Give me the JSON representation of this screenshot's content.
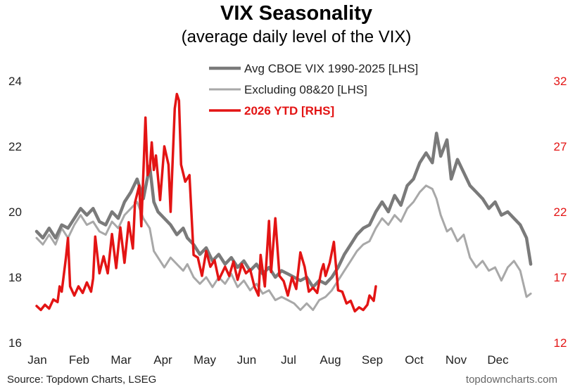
{
  "chart_data": {
    "type": "line",
    "title": "VIX Seasonality",
    "subtitle": "(average daily level of the VIX)",
    "source": "Source: Topdown Charts, LSEG",
    "watermark": "topdowncharts.com",
    "x_months": [
      "Jan",
      "Feb",
      "Mar",
      "Apr",
      "May",
      "Jun",
      "Jul",
      "Aug",
      "Sep",
      "Oct",
      "Nov",
      "Dec"
    ],
    "y_left": {
      "min": 16,
      "max": 24,
      "ticks": [
        "16",
        "18",
        "20",
        "22",
        "24"
      ]
    },
    "y_right": {
      "min": 12,
      "max": 32,
      "ticks": [
        "12",
        "17",
        "22",
        "27",
        "32"
      ]
    },
    "legend_position": "top-center",
    "grid": false,
    "series": [
      {
        "name": "Avg CBOE VIX 1990-2025 [LHS]",
        "axis": "left",
        "color": "#7a7a7a",
        "points": [
          [
            0.0,
            19.4
          ],
          [
            0.15,
            19.2
          ],
          [
            0.3,
            19.5
          ],
          [
            0.45,
            19.2
          ],
          [
            0.6,
            19.6
          ],
          [
            0.75,
            19.5
          ],
          [
            0.9,
            19.8
          ],
          [
            1.05,
            20.1
          ],
          [
            1.2,
            19.9
          ],
          [
            1.35,
            20.1
          ],
          [
            1.5,
            19.7
          ],
          [
            1.65,
            19.6
          ],
          [
            1.8,
            20.0
          ],
          [
            1.95,
            19.8
          ],
          [
            2.1,
            20.3
          ],
          [
            2.25,
            20.6
          ],
          [
            2.4,
            21.0
          ],
          [
            2.55,
            20.4
          ],
          [
            2.7,
            21.4
          ],
          [
            2.8,
            20.3
          ],
          [
            2.9,
            20.0
          ],
          [
            3.05,
            19.8
          ],
          [
            3.2,
            19.6
          ],
          [
            3.35,
            19.3
          ],
          [
            3.5,
            19.5
          ],
          [
            3.6,
            19.2
          ],
          [
            3.75,
            19.0
          ],
          [
            3.9,
            18.7
          ],
          [
            4.05,
            18.9
          ],
          [
            4.2,
            18.5
          ],
          [
            4.35,
            18.7
          ],
          [
            4.5,
            18.4
          ],
          [
            4.65,
            18.6
          ],
          [
            4.8,
            18.3
          ],
          [
            4.95,
            18.5
          ],
          [
            5.1,
            18.2
          ],
          [
            5.25,
            18.4
          ],
          [
            5.4,
            18.1
          ],
          [
            5.55,
            18.3
          ],
          [
            5.7,
            18.0
          ],
          [
            5.85,
            18.2
          ],
          [
            6.0,
            18.1
          ],
          [
            6.15,
            18.0
          ],
          [
            6.3,
            17.9
          ],
          [
            6.45,
            18.0
          ],
          [
            6.6,
            17.7
          ],
          [
            6.75,
            17.9
          ],
          [
            6.9,
            17.8
          ],
          [
            7.05,
            18.0
          ],
          [
            7.2,
            18.3
          ],
          [
            7.35,
            18.7
          ],
          [
            7.5,
            19.0
          ],
          [
            7.65,
            19.3
          ],
          [
            7.8,
            19.5
          ],
          [
            7.95,
            19.6
          ],
          [
            8.1,
            20.0
          ],
          [
            8.25,
            20.3
          ],
          [
            8.4,
            20.0
          ],
          [
            8.55,
            20.5
          ],
          [
            8.7,
            20.2
          ],
          [
            8.85,
            20.8
          ],
          [
            9.0,
            21.0
          ],
          [
            9.15,
            21.5
          ],
          [
            9.3,
            21.8
          ],
          [
            9.45,
            21.5
          ],
          [
            9.55,
            22.4
          ],
          [
            9.65,
            21.7
          ],
          [
            9.8,
            22.2
          ],
          [
            9.9,
            21.0
          ],
          [
            10.05,
            21.6
          ],
          [
            10.2,
            21.2
          ],
          [
            10.35,
            20.8
          ],
          [
            10.5,
            20.6
          ],
          [
            10.65,
            20.4
          ],
          [
            10.8,
            20.1
          ],
          [
            10.95,
            20.3
          ],
          [
            11.1,
            19.9
          ],
          [
            11.25,
            20.0
          ],
          [
            11.4,
            19.8
          ],
          [
            11.55,
            19.6
          ],
          [
            11.7,
            19.2
          ],
          [
            11.8,
            18.4
          ]
        ]
      },
      {
        "name": "Excluding 08&20 [LHS]",
        "axis": "left",
        "color": "#a8a8a8",
        "points": [
          [
            0.0,
            19.2
          ],
          [
            0.15,
            19.0
          ],
          [
            0.3,
            19.3
          ],
          [
            0.45,
            19.0
          ],
          [
            0.6,
            19.5
          ],
          [
            0.75,
            19.2
          ],
          [
            0.9,
            19.6
          ],
          [
            1.05,
            19.9
          ],
          [
            1.2,
            19.6
          ],
          [
            1.35,
            19.7
          ],
          [
            1.5,
            19.4
          ],
          [
            1.65,
            19.3
          ],
          [
            1.8,
            19.7
          ],
          [
            1.95,
            19.5
          ],
          [
            2.1,
            19.9
          ],
          [
            2.25,
            20.1
          ],
          [
            2.4,
            20.3
          ],
          [
            2.55,
            19.8
          ],
          [
            2.7,
            19.5
          ],
          [
            2.8,
            18.8
          ],
          [
            2.9,
            18.6
          ],
          [
            3.05,
            18.3
          ],
          [
            3.2,
            18.6
          ],
          [
            3.35,
            18.4
          ],
          [
            3.5,
            18.2
          ],
          [
            3.6,
            18.4
          ],
          [
            3.75,
            18.0
          ],
          [
            3.9,
            17.8
          ],
          [
            4.05,
            18.0
          ],
          [
            4.2,
            17.7
          ],
          [
            4.35,
            18.0
          ],
          [
            4.5,
            17.8
          ],
          [
            4.65,
            18.1
          ],
          [
            4.8,
            17.7
          ],
          [
            4.95,
            17.9
          ],
          [
            5.1,
            17.6
          ],
          [
            5.25,
            17.8
          ],
          [
            5.4,
            17.5
          ],
          [
            5.55,
            17.6
          ],
          [
            5.7,
            17.3
          ],
          [
            5.85,
            17.4
          ],
          [
            6.0,
            17.3
          ],
          [
            6.15,
            17.2
          ],
          [
            6.3,
            17.0
          ],
          [
            6.45,
            17.2
          ],
          [
            6.6,
            17.0
          ],
          [
            6.75,
            17.3
          ],
          [
            6.9,
            17.4
          ],
          [
            7.05,
            17.6
          ],
          [
            7.2,
            17.9
          ],
          [
            7.35,
            18.2
          ],
          [
            7.5,
            18.5
          ],
          [
            7.65,
            18.8
          ],
          [
            7.8,
            19.0
          ],
          [
            7.95,
            19.1
          ],
          [
            8.1,
            19.5
          ],
          [
            8.25,
            19.8
          ],
          [
            8.4,
            19.6
          ],
          [
            8.55,
            19.9
          ],
          [
            8.7,
            19.7
          ],
          [
            8.85,
            20.1
          ],
          [
            9.0,
            20.3
          ],
          [
            9.15,
            20.6
          ],
          [
            9.3,
            20.8
          ],
          [
            9.45,
            20.7
          ],
          [
            9.55,
            20.4
          ],
          [
            9.65,
            19.9
          ],
          [
            9.8,
            19.4
          ],
          [
            9.9,
            19.5
          ],
          [
            10.05,
            19.1
          ],
          [
            10.2,
            19.3
          ],
          [
            10.35,
            18.6
          ],
          [
            10.5,
            18.3
          ],
          [
            10.65,
            18.5
          ],
          [
            10.8,
            18.2
          ],
          [
            10.95,
            18.3
          ],
          [
            11.1,
            17.9
          ],
          [
            11.25,
            18.3
          ],
          [
            11.4,
            18.5
          ],
          [
            11.55,
            18.2
          ],
          [
            11.7,
            17.4
          ],
          [
            11.8,
            17.5
          ]
        ]
      },
      {
        "name": "2026 YTD [RHS]",
        "axis": "right",
        "color": "#e31414",
        "points": [
          [
            0.0,
            14.8
          ],
          [
            0.1,
            14.5
          ],
          [
            0.2,
            14.9
          ],
          [
            0.3,
            14.6
          ],
          [
            0.4,
            15.3
          ],
          [
            0.5,
            15.1
          ],
          [
            0.55,
            16.3
          ],
          [
            0.6,
            15.9
          ],
          [
            0.7,
            18.5
          ],
          [
            0.75,
            20.0
          ],
          [
            0.8,
            16.3
          ],
          [
            0.9,
            15.6
          ],
          [
            1.0,
            16.3
          ],
          [
            1.1,
            15.8
          ],
          [
            1.2,
            16.6
          ],
          [
            1.3,
            15.9
          ],
          [
            1.35,
            16.9
          ],
          [
            1.4,
            20.1
          ],
          [
            1.5,
            17.3
          ],
          [
            1.6,
            18.6
          ],
          [
            1.7,
            17.3
          ],
          [
            1.8,
            20.3
          ],
          [
            1.9,
            17.7
          ],
          [
            2.0,
            20.8
          ],
          [
            2.1,
            18.1
          ],
          [
            2.2,
            21.2
          ],
          [
            2.3,
            19.2
          ],
          [
            2.35,
            22.7
          ],
          [
            2.45,
            24.0
          ],
          [
            2.5,
            20.9
          ],
          [
            2.6,
            29.2
          ],
          [
            2.65,
            24.8
          ],
          [
            2.7,
            25.2
          ],
          [
            2.75,
            27.3
          ],
          [
            2.8,
            25.2
          ],
          [
            2.85,
            26.3
          ],
          [
            2.95,
            22.9
          ],
          [
            3.05,
            27.0
          ],
          [
            3.15,
            25.6
          ],
          [
            3.2,
            22.0
          ],
          [
            3.3,
            29.9
          ],
          [
            3.35,
            31.0
          ],
          [
            3.4,
            30.5
          ],
          [
            3.45,
            25.6
          ],
          [
            3.55,
            24.3
          ],
          [
            3.65,
            24.8
          ],
          [
            3.75,
            18.7
          ],
          [
            3.85,
            18.5
          ],
          [
            3.95,
            17.1
          ],
          [
            4.05,
            19.0
          ],
          [
            4.15,
            17.8
          ],
          [
            4.25,
            18.3
          ],
          [
            4.35,
            16.8
          ],
          [
            4.5,
            17.8
          ],
          [
            4.6,
            17.1
          ],
          [
            4.7,
            18.2
          ],
          [
            4.8,
            16.8
          ],
          [
            4.9,
            18.0
          ],
          [
            5.0,
            17.3
          ],
          [
            5.1,
            17.6
          ],
          [
            5.2,
            16.3
          ],
          [
            5.3,
            15.6
          ],
          [
            5.35,
            18.7
          ],
          [
            5.45,
            16.3
          ],
          [
            5.55,
            21.3
          ],
          [
            5.6,
            17.4
          ],
          [
            5.7,
            21.5
          ],
          [
            5.8,
            17.1
          ],
          [
            5.9,
            16.7
          ],
          [
            6.0,
            15.6
          ],
          [
            6.1,
            17.0
          ],
          [
            6.2,
            16.1
          ],
          [
            6.3,
            18.9
          ],
          [
            6.4,
            17.8
          ],
          [
            6.5,
            15.9
          ],
          [
            6.6,
            16.2
          ],
          [
            6.7,
            15.8
          ],
          [
            6.8,
            17.5
          ],
          [
            6.85,
            18.0
          ],
          [
            6.9,
            17.1
          ],
          [
            7.0,
            18.1
          ],
          [
            7.1,
            19.7
          ],
          [
            7.2,
            16.0
          ],
          [
            7.3,
            15.9
          ],
          [
            7.4,
            15.0
          ],
          [
            7.5,
            15.2
          ],
          [
            7.6,
            14.4
          ],
          [
            7.7,
            14.7
          ],
          [
            7.8,
            14.5
          ],
          [
            7.9,
            14.9
          ],
          [
            7.95,
            15.6
          ],
          [
            8.05,
            15.2
          ],
          [
            8.1,
            16.3
          ]
        ]
      }
    ]
  }
}
